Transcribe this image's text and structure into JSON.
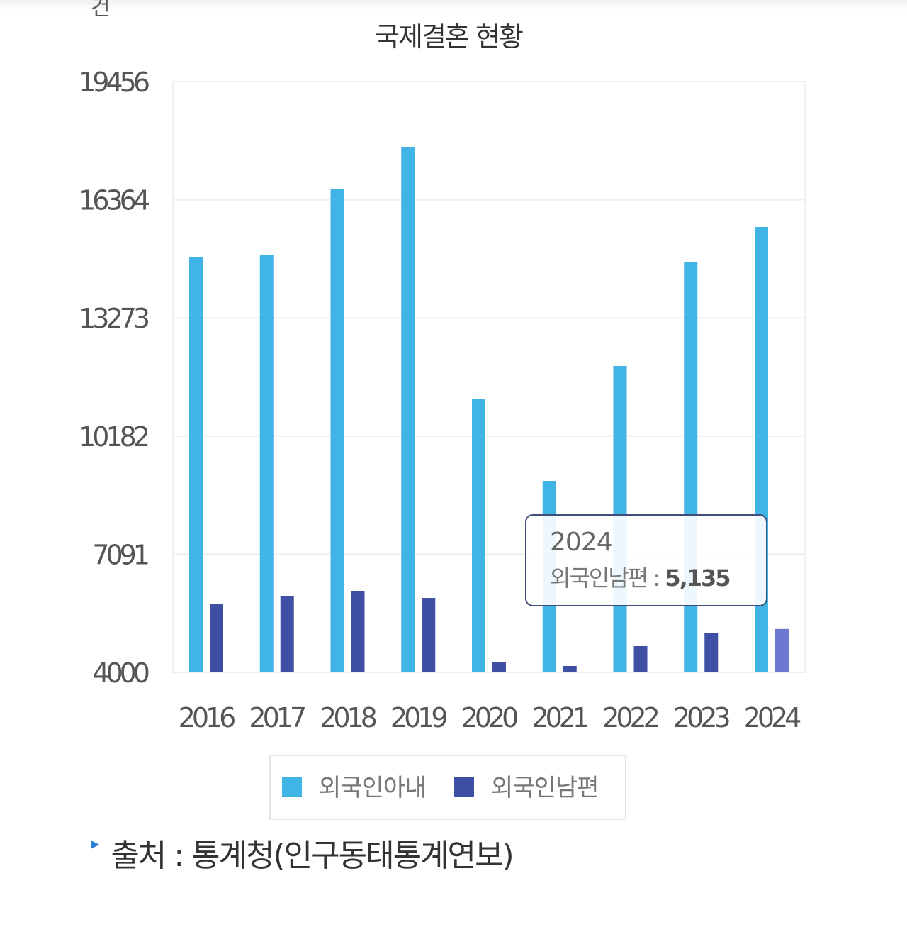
{
  "chart_data": {
    "type": "bar",
    "title": "국제결혼 현황",
    "unit": "건",
    "categories": [
      "2016",
      "2017",
      "2018",
      "2019",
      "2020",
      "2021",
      "2022",
      "2023",
      "2024"
    ],
    "series": [
      {
        "name": "외국인아내",
        "color": "#41b4e6",
        "values": [
          14855,
          14910,
          16654,
          17749,
          11144,
          9010,
          12016,
          14725,
          15652
        ]
      },
      {
        "name": "외국인남편",
        "color": "#3f4fa3",
        "values": [
          5781,
          6004,
          6134,
          5948,
          4278,
          4167,
          4687,
          5039,
          5135
        ]
      }
    ],
    "ylim": [
      4000,
      19456
    ],
    "yticks": [
      "4000",
      "7091",
      "10182",
      "13273",
      "16364",
      "19456"
    ],
    "grid": true,
    "legend": "bottom",
    "highlight_color": "#6b78d0",
    "tooltip": {
      "year": "2024",
      "label": "외국인남편 : ",
      "value": "5,135"
    }
  },
  "source": "출처 : 통계청(인구동태통계연보)"
}
